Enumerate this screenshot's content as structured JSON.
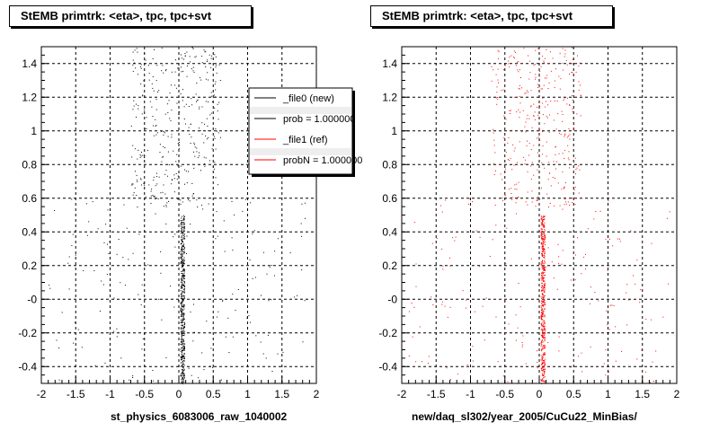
{
  "chart_data": [
    {
      "type": "scatter",
      "title": "StEMB primtrk: <eta>, tpc, tpc+svt",
      "xlabel": "st_physics_6083006_raw_1040002",
      "ylabel": "",
      "xlim": [
        -2,
        2
      ],
      "ylim": [
        -0.5,
        1.5
      ],
      "xticks": [
        "-2",
        "-1.5",
        "-1",
        "-0.5",
        "0",
        "0.5",
        "1",
        "1.5",
        "2"
      ],
      "yticks": [
        "-0.4",
        "-0.2",
        "-0",
        "0.2",
        "0.4",
        "0.6",
        "0.8",
        "1",
        "1.2",
        "1.4"
      ],
      "grid": true,
      "marker_color": "#000000",
      "legend_placement": "top-right",
      "legend": [
        {
          "label": "_file0 (new)",
          "color": "#000000"
        },
        {
          "label": "prob = 1.000000",
          "color": "#000000"
        },
        {
          "label": "_file1 (ref)",
          "color": "#ff0000"
        },
        {
          "label": "probN = 1.000000",
          "color": "#ff0000"
        }
      ],
      "series": [
        {
          "kind": "band",
          "x_center": 0.05,
          "x_width": 0.06,
          "y_range": [
            -0.5,
            0.5
          ],
          "density": "high"
        },
        {
          "kind": "cloud",
          "x_range": [
            -0.7,
            0.6
          ],
          "y_range": [
            0.55,
            1.5
          ],
          "density": "medium"
        },
        {
          "kind": "cloud",
          "x_range": [
            -1.9,
            1.9
          ],
          "y_range": [
            -0.5,
            0.6
          ],
          "density": "low"
        }
      ]
    },
    {
      "type": "scatter",
      "title": "StEMB primtrk: <eta>, tpc, tpc+svt",
      "xlabel": "new/daq_sl302/year_2005/CuCu22_MinBias/",
      "ylabel": "",
      "xlim": [
        -2,
        2
      ],
      "ylim": [
        -0.5,
        1.5
      ],
      "xticks": [
        "-2",
        "-1.5",
        "-1",
        "-0.5",
        "0",
        "0.5",
        "1",
        "1.5",
        "2"
      ],
      "yticks": [
        "-0.4",
        "-0.2",
        "-0",
        "0.2",
        "0.4",
        "0.6",
        "0.8",
        "1",
        "1.2",
        "1.4"
      ],
      "grid": true,
      "marker_color": "#ff0000",
      "series": [
        {
          "kind": "band",
          "x_center": 0.05,
          "x_width": 0.06,
          "y_range": [
            -0.5,
            0.5
          ],
          "density": "high"
        },
        {
          "kind": "cloud",
          "x_range": [
            -0.7,
            0.6
          ],
          "y_range": [
            0.55,
            1.5
          ],
          "density": "medium"
        },
        {
          "kind": "cloud",
          "x_range": [
            -1.9,
            1.9
          ],
          "y_range": [
            -0.5,
            0.6
          ],
          "density": "low"
        }
      ]
    }
  ]
}
